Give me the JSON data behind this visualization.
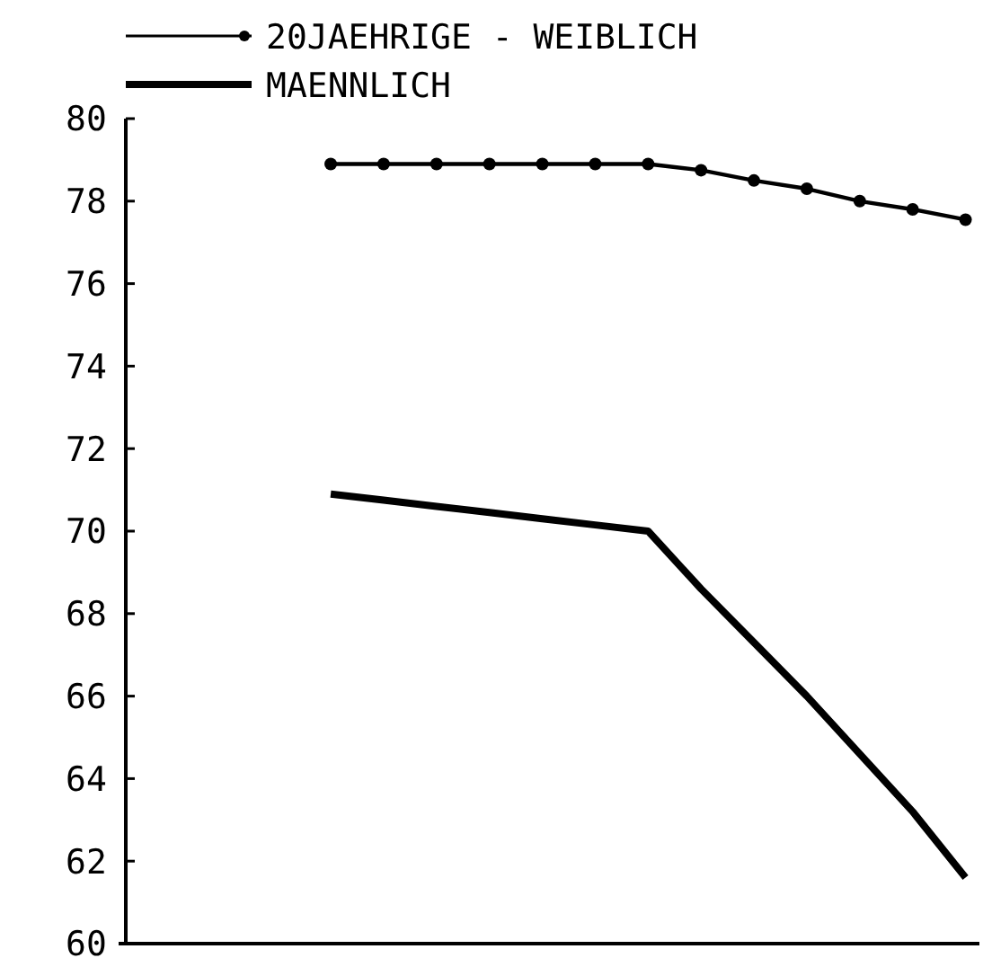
{
  "chart_data": {
    "type": "line",
    "categories": [
      null,
      null,
      null,
      null,
      null,
      null,
      null,
      null,
      null,
      null,
      null,
      null,
      null,
      null,
      null,
      null
    ],
    "series": [
      {
        "name": "20JAEHRIGE - WEIBLICH",
        "color": "#000000",
        "marker": "circle",
        "values": [
          null,
          null,
          null,
          78.9,
          78.9,
          78.9,
          78.9,
          78.9,
          78.9,
          78.9,
          78.75,
          78.5,
          78.3,
          78.0,
          77.8,
          77.55
        ]
      },
      {
        "name": "MAENNLICH",
        "color": "#000000",
        "marker": "none",
        "values": [
          null,
          null,
          null,
          70.9,
          70.75,
          70.6,
          70.45,
          70.3,
          70.15,
          70.0,
          68.6,
          67.3,
          66.0,
          64.6,
          63.2,
          61.6
        ]
      }
    ],
    "ylim": [
      60,
      80
    ],
    "yticks": [
      60,
      62,
      64,
      66,
      68,
      70,
      72,
      74,
      76,
      78,
      80
    ],
    "grid": false,
    "legend": "top",
    "line_style": "solid"
  }
}
